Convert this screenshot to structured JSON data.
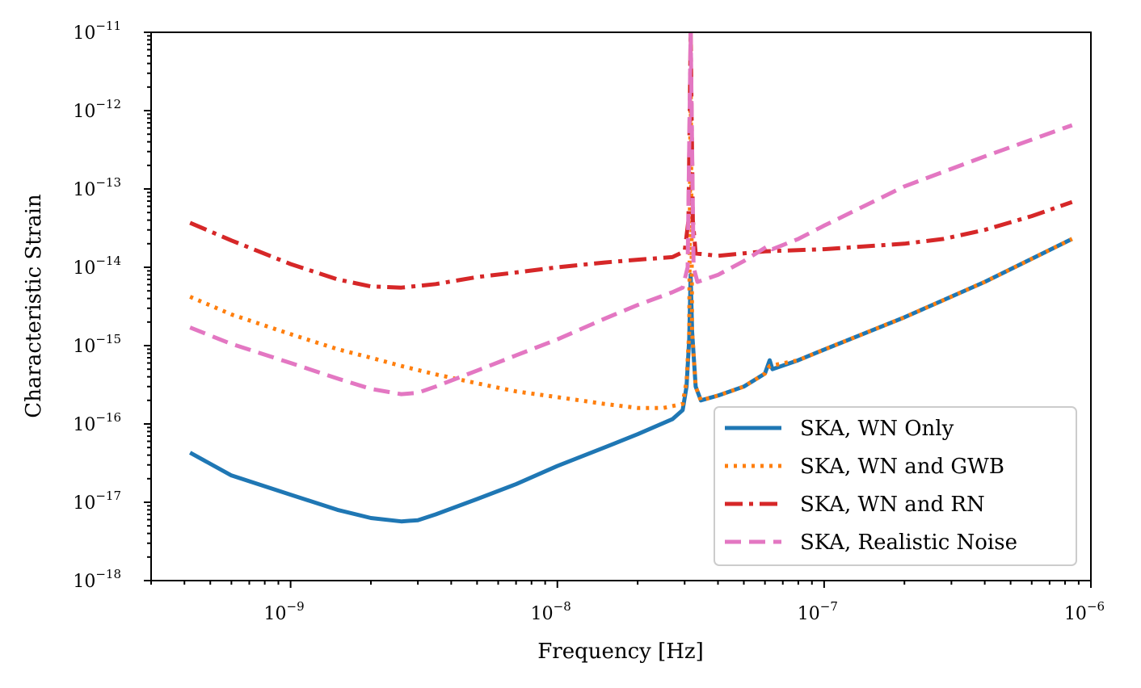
{
  "chart_data": {
    "type": "line",
    "xlabel": "Frequency [Hz]",
    "ylabel": "Characteristic Strain",
    "xscale": "log",
    "yscale": "log",
    "xlim": [
      3e-10,
      1e-06
    ],
    "ylim": [
      1e-18,
      1e-11
    ],
    "x_ticks": [
      {
        "base": "10",
        "exp": "−9",
        "value": 1e-09
      },
      {
        "base": "10",
        "exp": "−8",
        "value": 1e-08
      },
      {
        "base": "10",
        "exp": "−7",
        "value": 1e-07
      },
      {
        "base": "10",
        "exp": "−6",
        "value": 1e-06
      }
    ],
    "y_ticks": [
      {
        "base": "10",
        "exp": "−11",
        "value": 1e-11
      },
      {
        "base": "10",
        "exp": "−12",
        "value": 1e-12
      },
      {
        "base": "10",
        "exp": "−13",
        "value": 1e-13
      },
      {
        "base": "10",
        "exp": "−14",
        "value": 1e-14
      },
      {
        "base": "10",
        "exp": "−15",
        "value": 1e-15
      },
      {
        "base": "10",
        "exp": "−16",
        "value": 1e-16
      },
      {
        "base": "10",
        "exp": "−17",
        "value": 1e-17
      },
      {
        "base": "10",
        "exp": "−18",
        "value": 1e-18
      }
    ],
    "grid": false,
    "legend_position": "lower-right",
    "series": [
      {
        "name": "SKA, WN Only",
        "color": "#1f77b4",
        "style": "solid",
        "points": [
          [
            4.2e-10,
            4.3e-17
          ],
          [
            6e-10,
            2.2e-17
          ],
          [
            1e-09,
            1.25e-17
          ],
          [
            1.5e-09,
            8e-18
          ],
          [
            2e-09,
            6.3e-18
          ],
          [
            2.6e-09,
            5.7e-18
          ],
          [
            3e-09,
            5.9e-18
          ],
          [
            3.5e-09,
            7e-18
          ],
          [
            5e-09,
            1.1e-17
          ],
          [
            7e-09,
            1.7e-17
          ],
          [
            1e-08,
            2.9e-17
          ],
          [
            1.5e-08,
            5e-17
          ],
          [
            2e-08,
            7.4e-17
          ],
          [
            2.7e-08,
            1.15e-16
          ],
          [
            2.95e-08,
            1.5e-16
          ],
          [
            3.05e-08,
            3e-16
          ],
          [
            3.12e-08,
            1.2e-15
          ],
          [
            3.16e-08,
            8e-15
          ],
          [
            3.2e-08,
            1.5e-15
          ],
          [
            3.3e-08,
            3e-16
          ],
          [
            3.45e-08,
            2e-16
          ],
          [
            4e-08,
            2.3e-16
          ],
          [
            5e-08,
            3e-16
          ],
          [
            6e-08,
            4.4e-16
          ],
          [
            6.25e-08,
            6.5e-16
          ],
          [
            6.4e-08,
            5e-16
          ],
          [
            8e-08,
            6.5e-16
          ],
          [
            1e-07,
            8.9e-16
          ],
          [
            2e-07,
            2.3e-15
          ],
          [
            4e-07,
            6.5e-15
          ],
          [
            8.5e-07,
            2.3e-14
          ]
        ]
      },
      {
        "name": "SKA, WN and GWB",
        "color": "#ff7f0e",
        "style": "dotted",
        "points": [
          [
            4.2e-10,
            4.2e-15
          ],
          [
            6e-10,
            2.5e-15
          ],
          [
            1e-09,
            1.4e-15
          ],
          [
            1.5e-09,
            9e-16
          ],
          [
            2e-09,
            7e-16
          ],
          [
            2.6e-09,
            5.5e-16
          ],
          [
            3.5e-09,
            4.3e-16
          ],
          [
            5e-09,
            3.3e-16
          ],
          [
            7e-09,
            2.6e-16
          ],
          [
            1e-08,
            2.2e-16
          ],
          [
            1.5e-08,
            1.8e-16
          ],
          [
            2e-08,
            1.6e-16
          ],
          [
            2.5e-08,
            1.6e-16
          ],
          [
            2.95e-08,
            1.8e-16
          ],
          [
            3.05e-08,
            3.5e-16
          ],
          [
            3.12e-08,
            1.5e-15
          ],
          [
            3.16e-08,
            3e-12
          ],
          [
            3.2e-08,
            1.5e-15
          ],
          [
            3.3e-08,
            3e-16
          ],
          [
            3.45e-08,
            2e-16
          ],
          [
            4e-08,
            2.3e-16
          ],
          [
            5e-08,
            3e-16
          ],
          [
            6e-08,
            4.4e-16
          ],
          [
            6.25e-08,
            5.5e-16
          ],
          [
            8e-08,
            6.5e-16
          ],
          [
            1e-07,
            8.9e-16
          ],
          [
            2e-07,
            2.3e-15
          ],
          [
            4e-07,
            6.5e-15
          ],
          [
            8.5e-07,
            2.3e-14
          ]
        ]
      },
      {
        "name": "SKA, WN and RN",
        "color": "#d62728",
        "style": "dashdot",
        "points": [
          [
            4.2e-10,
            3.7e-14
          ],
          [
            6e-10,
            2.2e-14
          ],
          [
            1e-09,
            1.1e-14
          ],
          [
            1.5e-09,
            7e-15
          ],
          [
            2e-09,
            5.7e-15
          ],
          [
            2.6e-09,
            5.5e-15
          ],
          [
            3.5e-09,
            6.1e-15
          ],
          [
            5e-09,
            7.5e-15
          ],
          [
            7e-09,
            8.6e-15
          ],
          [
            1e-08,
            1e-14
          ],
          [
            1.5e-08,
            1.15e-14
          ],
          [
            2e-08,
            1.25e-14
          ],
          [
            2.7e-08,
            1.35e-14
          ],
          [
            3e-08,
            1.6e-14
          ],
          [
            3.1e-08,
            4e-14
          ],
          [
            3.16e-08,
            1e-11
          ],
          [
            3.22e-08,
            4e-14
          ],
          [
            3.3e-08,
            1.5e-14
          ],
          [
            4e-08,
            1.4e-14
          ],
          [
            6e-08,
            1.6e-14
          ],
          [
            1e-07,
            1.7e-14
          ],
          [
            2e-07,
            2e-14
          ],
          [
            2.8e-07,
            2.3e-14
          ],
          [
            4e-07,
            3e-14
          ],
          [
            6e-07,
            4.5e-14
          ],
          [
            8.5e-07,
            6.8e-14
          ]
        ]
      },
      {
        "name": "SKA, Realistic Noise",
        "color": "#e377c2",
        "style": "dashed",
        "points": [
          [
            4.2e-10,
            1.7e-15
          ],
          [
            6e-10,
            1.05e-15
          ],
          [
            1e-09,
            6e-16
          ],
          [
            1.5e-09,
            3.8e-16
          ],
          [
            2e-09,
            2.8e-16
          ],
          [
            2.6e-09,
            2.4e-16
          ],
          [
            3e-09,
            2.5e-16
          ],
          [
            3.5e-09,
            3e-16
          ],
          [
            5e-09,
            4.8e-16
          ],
          [
            7e-09,
            7.5e-16
          ],
          [
            1e-08,
            1.2e-15
          ],
          [
            1.5e-08,
            2.2e-15
          ],
          [
            2e-08,
            3.3e-15
          ],
          [
            2.7e-08,
            4.8e-15
          ],
          [
            2.95e-08,
            5.5e-15
          ],
          [
            3.08e-08,
            1e-14
          ],
          [
            3.16e-08,
            1e-11
          ],
          [
            3.24e-08,
            1e-14
          ],
          [
            3.35e-08,
            6.5e-15
          ],
          [
            4e-08,
            8e-15
          ],
          [
            5e-08,
            1.2e-14
          ],
          [
            6.2e-08,
            1.9e-14
          ],
          [
            6.4e-08,
            1.7e-14
          ],
          [
            8e-08,
            2.3e-14
          ],
          [
            1e-07,
            3.4e-14
          ],
          [
            2e-07,
            1.08e-13
          ],
          [
            4e-07,
            2.6e-13
          ],
          [
            8.5e-07,
            6.5e-13
          ]
        ]
      }
    ]
  }
}
